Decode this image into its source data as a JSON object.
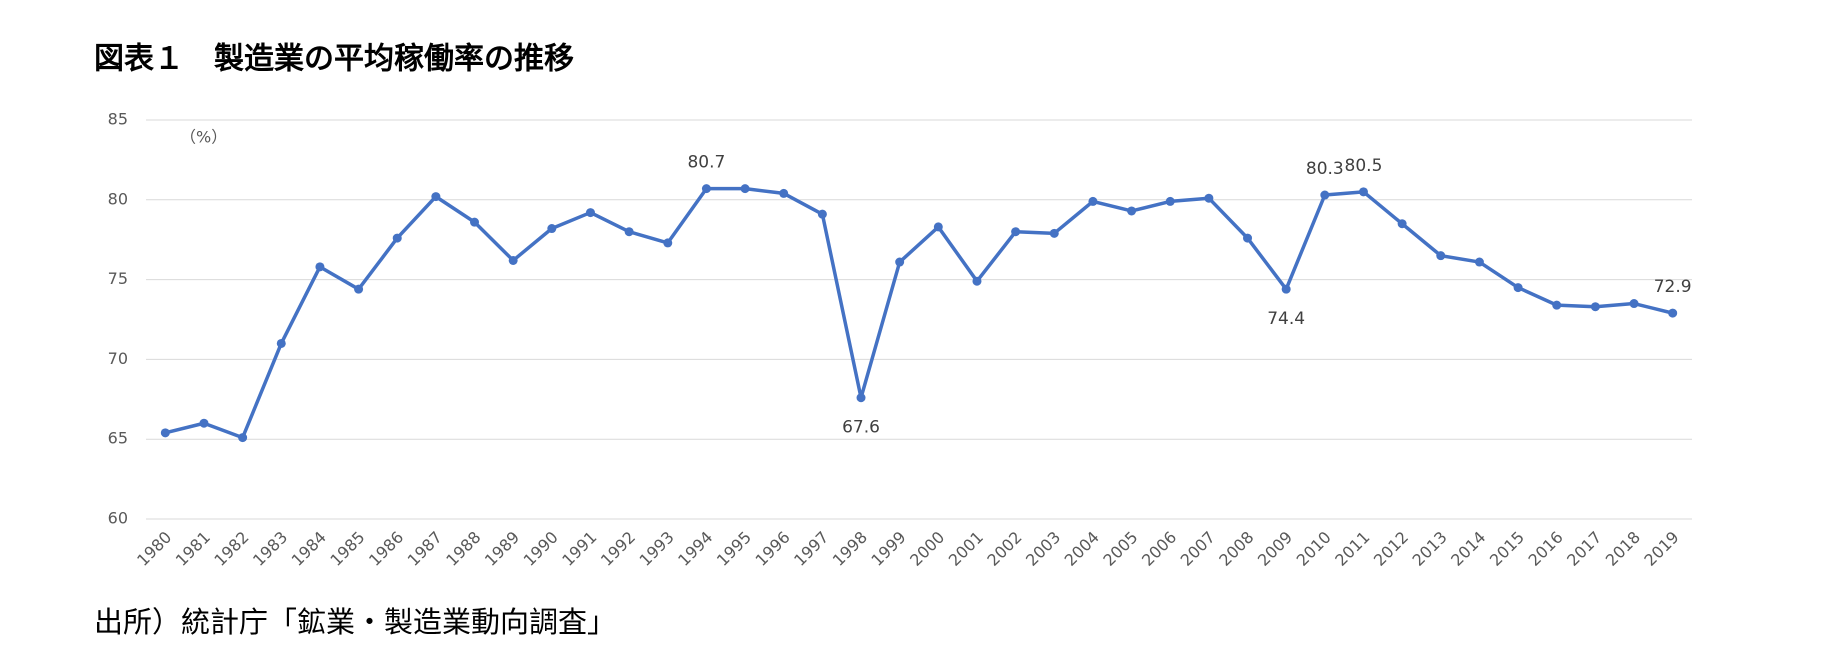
{
  "chart_data": {
    "type": "line",
    "title": "図表１　製造業の平均稼働率の推移",
    "unit_label": "（%）",
    "source": "出所）統計庁「鉱業・製造業動向調査」",
    "categories": [
      "1980",
      "1981",
      "1982",
      "1983",
      "1984",
      "1985",
      "1986",
      "1987",
      "1988",
      "1989",
      "1990",
      "1991",
      "1992",
      "1993",
      "1994",
      "1995",
      "1996",
      "1997",
      "1998",
      "1999",
      "2000",
      "2001",
      "2002",
      "2003",
      "2004",
      "2005",
      "2006",
      "2007",
      "2008",
      "2009",
      "2010",
      "2011",
      "2012",
      "2013",
      "2014",
      "2015",
      "2016",
      "2017",
      "2018",
      "2019"
    ],
    "series": [
      {
        "name": "製造業の平均稼働率",
        "color": "#4472c4",
        "values": [
          65.4,
          66.0,
          65.1,
          71.0,
          75.8,
          74.4,
          77.6,
          80.2,
          78.6,
          76.2,
          78.2,
          79.2,
          78.0,
          77.3,
          80.7,
          80.7,
          80.4,
          79.1,
          67.6,
          76.1,
          78.3,
          74.9,
          78.0,
          77.9,
          79.9,
          79.3,
          79.9,
          80.1,
          77.6,
          74.4,
          80.3,
          80.5,
          78.5,
          76.5,
          76.1,
          74.5,
          73.4,
          73.3,
          73.5,
          72.9
        ],
        "value_labels": [
          null,
          null,
          null,
          null,
          null,
          null,
          null,
          null,
          null,
          null,
          null,
          null,
          null,
          null,
          "80.7",
          null,
          null,
          null,
          "67.6",
          null,
          null,
          null,
          null,
          null,
          null,
          null,
          null,
          null,
          null,
          "74.4",
          "80.3",
          "80.5",
          null,
          null,
          null,
          null,
          null,
          null,
          null,
          "72.9"
        ]
      }
    ],
    "ylim": [
      60,
      85
    ],
    "yticks": [
      60,
      65,
      70,
      75,
      80,
      85
    ],
    "grid": true
  }
}
